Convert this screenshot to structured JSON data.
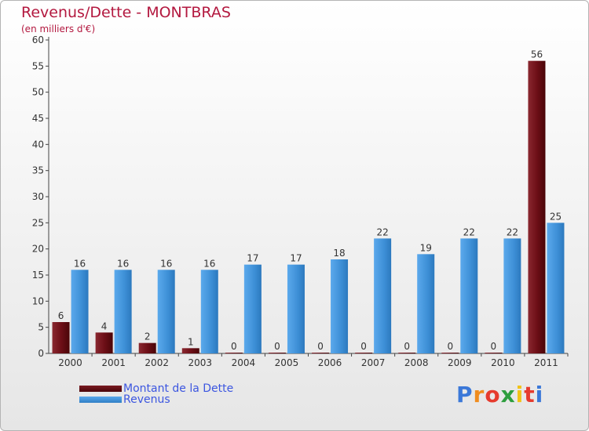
{
  "chart_data": {
    "type": "bar",
    "title": "Revenus/Dette - MONTBRAS",
    "subtitle": "(en milliers d'€)",
    "categories": [
      "2000",
      "2001",
      "2002",
      "2003",
      "2004",
      "2005",
      "2006",
      "2007",
      "2008",
      "2009",
      "2010",
      "2011"
    ],
    "series": [
      {
        "name": "Montant de la Dette",
        "color": "#6e0f17",
        "values": [
          6,
          4,
          2,
          1,
          0,
          0,
          0,
          0,
          0,
          0,
          0,
          56
        ]
      },
      {
        "name": "Revenus",
        "color": "#3d8fd6",
        "values": [
          16,
          16,
          16,
          16,
          17,
          17,
          18,
          22,
          19,
          22,
          22,
          25
        ]
      }
    ],
    "ylim": [
      0,
      60
    ],
    "yticks": [
      0,
      5,
      10,
      15,
      20,
      25,
      30,
      35,
      40,
      45,
      50,
      55,
      60
    ],
    "grid": false,
    "legend": "bottom-left"
  },
  "legend": {
    "items": [
      {
        "label": "Montant de la Dette",
        "color": "#6e0f17"
      },
      {
        "label": "Revenus",
        "color": "#3d8fd6"
      }
    ]
  },
  "logo": {
    "text": "Proxiti"
  }
}
